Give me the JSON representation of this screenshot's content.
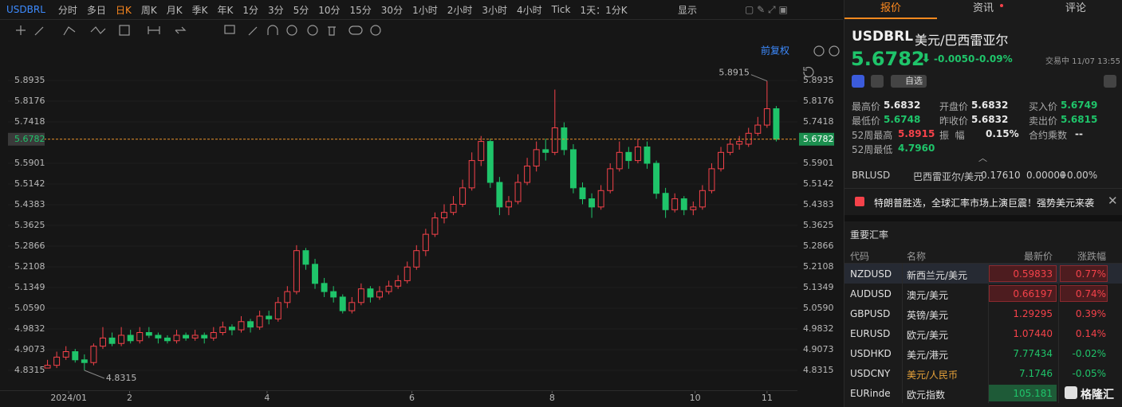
{
  "toolbar": {
    "symbol": "USDBRL",
    "periods": [
      "分时",
      "多日",
      "日K",
      "周K",
      "月K",
      "季K",
      "年K",
      "1分",
      "3分",
      "5分",
      "10分",
      "15分",
      "30分",
      "1小时",
      "2小时",
      "3小时",
      "4小时",
      "Tick"
    ],
    "active_period": "日K",
    "interval": "1天：1分K",
    "display": "显示"
  },
  "chart_header": {
    "adjust": "前复权"
  },
  "chart_data": {
    "type": "candlestick",
    "up_color": "#f5424a",
    "down_color": "#1fc46a",
    "grid": true,
    "ylim": [
      4.7585,
      5.9694
    ],
    "yticks": [
      5.8935,
      5.8176,
      5.7418,
      5.5901,
      5.5142,
      5.4383,
      5.3625,
      5.2866,
      5.2108,
      5.1349,
      {
        "value": 5.059,
        "label": "5.0590"
      },
      4.9832,
      4.9073,
      4.8315
    ],
    "last_price": 5.6782,
    "high_label": 5.8915,
    "low_label": 4.8315,
    "xlim": [
      -1,
      80
    ],
    "xticks": [
      {
        "value": 2.3,
        "label": "2024/01"
      },
      {
        "value": 8.9,
        "label": "2"
      },
      {
        "value": 23.8,
        "label": "4"
      },
      {
        "value": 39.5,
        "label": "6"
      },
      {
        "value": 54.7,
        "label": "8"
      },
      {
        "value": 70.2,
        "label": "10"
      },
      {
        "value": 78,
        "label": "11"
      }
    ],
    "candles": [
      [
        4.84,
        4.87,
        4.84,
        4.85
      ],
      [
        4.85,
        4.9,
        4.84,
        4.88
      ],
      [
        4.88,
        4.92,
        4.87,
        4.9
      ],
      [
        4.9,
        4.91,
        4.86,
        4.87
      ],
      [
        4.87,
        4.89,
        4.8315,
        4.86
      ],
      [
        4.86,
        4.93,
        4.85,
        4.92
      ],
      [
        4.92,
        4.99,
        4.91,
        4.95
      ],
      [
        4.95,
        4.97,
        4.92,
        4.93
      ],
      [
        4.93,
        4.99,
        4.92,
        4.96
      ],
      [
        4.96,
        4.98,
        4.93,
        4.94
      ],
      [
        4.94,
        4.99,
        4.93,
        4.97
      ],
      [
        4.97,
        4.99,
        4.95,
        4.96
      ],
      [
        4.96,
        4.97,
        4.93,
        4.95
      ],
      [
        4.95,
        4.96,
        4.93,
        4.94
      ],
      [
        4.94,
        4.98,
        4.93,
        4.96
      ],
      [
        4.96,
        4.97,
        4.94,
        4.95
      ],
      [
        4.95,
        4.98,
        4.94,
        4.96
      ],
      [
        4.96,
        4.97,
        4.93,
        4.95
      ],
      [
        4.95,
        4.99,
        4.94,
        4.97
      ],
      [
        4.97,
        5.01,
        4.96,
        4.99
      ],
      [
        4.99,
        5.0,
        4.96,
        4.98
      ],
      [
        4.98,
        5.03,
        4.97,
        5.01
      ],
      [
        5.01,
        5.02,
        4.97,
        4.99
      ],
      [
        4.99,
        5.05,
        4.98,
        5.03
      ],
      [
        5.03,
        5.05,
        5.0,
        5.02
      ],
      [
        5.02,
        5.1,
        5.01,
        5.08
      ],
      [
        5.08,
        5.14,
        5.06,
        5.12
      ],
      [
        5.12,
        5.29,
        5.11,
        5.27
      ],
      [
        5.27,
        5.28,
        5.2,
        5.22
      ],
      [
        5.22,
        5.24,
        5.13,
        5.15
      ],
      [
        5.15,
        5.17,
        5.1,
        5.12
      ],
      [
        5.12,
        5.14,
        5.08,
        5.1
      ],
      [
        5.1,
        5.11,
        5.04,
        5.05
      ],
      [
        5.05,
        5.1,
        5.04,
        5.08
      ],
      [
        5.08,
        5.15,
        5.07,
        5.13
      ],
      [
        5.13,
        5.14,
        5.08,
        5.1
      ],
      [
        5.1,
        5.14,
        5.09,
        5.12
      ],
      [
        5.12,
        5.16,
        5.11,
        5.14
      ],
      [
        5.14,
        5.18,
        5.13,
        5.16
      ],
      [
        5.16,
        5.23,
        5.15,
        5.21
      ],
      [
        5.21,
        5.29,
        5.2,
        5.27
      ],
      [
        5.27,
        5.35,
        5.25,
        5.33
      ],
      [
        5.33,
        5.41,
        5.32,
        5.39
      ],
      [
        5.39,
        5.44,
        5.37,
        5.41
      ],
      [
        5.41,
        5.47,
        5.4,
        5.44
      ],
      [
        5.44,
        5.53,
        5.43,
        5.5
      ],
      [
        5.5,
        5.63,
        5.49,
        5.6
      ],
      [
        5.6,
        5.69,
        5.58,
        5.67
      ],
      [
        5.67,
        5.68,
        5.5,
        5.52
      ],
      [
        5.52,
        5.54,
        5.4,
        5.43
      ],
      [
        5.43,
        5.47,
        5.4,
        5.45
      ],
      [
        5.45,
        5.55,
        5.44,
        5.52
      ],
      [
        5.52,
        5.61,
        5.51,
        5.58
      ],
      [
        5.58,
        5.67,
        5.56,
        5.64
      ],
      [
        5.64,
        5.68,
        5.6,
        5.63
      ],
      [
        5.63,
        5.86,
        5.62,
        5.72
      ],
      [
        5.72,
        5.74,
        5.62,
        5.64
      ],
      [
        5.64,
        5.66,
        5.48,
        5.5
      ],
      [
        5.5,
        5.52,
        5.44,
        5.46
      ],
      [
        5.46,
        5.48,
        5.39,
        5.43
      ],
      [
        5.43,
        5.51,
        5.42,
        5.49
      ],
      [
        5.49,
        5.59,
        5.48,
        5.57
      ],
      [
        5.57,
        5.67,
        5.56,
        5.63
      ],
      [
        5.63,
        5.65,
        5.57,
        5.6
      ],
      [
        5.6,
        5.68,
        5.59,
        5.65
      ],
      [
        5.65,
        5.67,
        5.57,
        5.59
      ],
      [
        5.59,
        5.6,
        5.46,
        5.48
      ],
      [
        5.48,
        5.5,
        5.39,
        5.42
      ],
      [
        5.42,
        5.48,
        5.41,
        5.46
      ],
      [
        5.46,
        5.47,
        5.4,
        5.42
      ],
      [
        5.42,
        5.45,
        5.4,
        5.43
      ],
      [
        5.43,
        5.51,
        5.42,
        5.49
      ],
      [
        5.49,
        5.59,
        5.48,
        5.57
      ],
      [
        5.57,
        5.65,
        5.56,
        5.63
      ],
      [
        5.63,
        5.68,
        5.62,
        5.66
      ],
      [
        5.66,
        5.69,
        5.64,
        5.67
      ],
      [
        5.66,
        5.72,
        5.65,
        5.7
      ],
      [
        5.7,
        5.76,
        5.69,
        5.73
      ],
      [
        5.73,
        5.8915,
        5.72,
        5.79
      ],
      [
        5.79,
        5.8,
        5.67,
        5.6782
      ]
    ]
  },
  "panel": {
    "tabs": [
      "报价",
      "资讯",
      "评论"
    ],
    "active_tab": "报价",
    "symbol": "USDBRL",
    "name": "美元/巴西雷亚尔",
    "price": "5.6782",
    "change": "-0.0050",
    "change_pct": "-0.09%",
    "status": "交易中 11/07 13:55",
    "watch": "自选",
    "stats": [
      [
        {
          "label": "最高价",
          "value": "5.6832",
          "tone": "flat"
        },
        {
          "label": "开盘价",
          "value": "5.6832",
          "tone": "flat"
        },
        {
          "label": "买入价",
          "value": "5.6749",
          "tone": "down"
        }
      ],
      [
        {
          "label": "最低价",
          "value": "5.6748",
          "tone": "down"
        },
        {
          "label": "昨收价",
          "value": "5.6832",
          "tone": "flat"
        },
        {
          "label": "卖出价",
          "value": "5.6815",
          "tone": "down"
        }
      ],
      [
        {
          "label": "52周最高",
          "value": "5.8915",
          "tone": "up"
        },
        {
          "label": "振  幅",
          "value": "0.15%",
          "tone": "flat"
        },
        {
          "label": "合约乘数",
          "value": "--",
          "tone": "flat"
        }
      ],
      [
        {
          "label": "52周最低",
          "value": "4.7960",
          "tone": "down"
        }
      ]
    ],
    "related": [
      "BRLUSD",
      "巴西雷亚尔/美元",
      "0.17610",
      "0.00000",
      "+0.00%"
    ],
    "news": "特朗普胜选，全球汇率市场上演巨震！强势美元来袭",
    "rates": {
      "title": "重要汇率",
      "columns": [
        "代码",
        "名称",
        "最新价",
        "涨跌幅"
      ],
      "rows": [
        {
          "cells": [
            "NZDUSD",
            "新西兰元/美元",
            "0.59833",
            "0.77%"
          ],
          "tone": "up",
          "highlight": true,
          "selected": true
        },
        {
          "cells": [
            "AUDUSD",
            "澳元/美元",
            "0.66197",
            "0.74%"
          ],
          "tone": "up",
          "highlight": true,
          "selected": false
        },
        {
          "cells": [
            "GBPUSD",
            "英镑/美元",
            "1.29295",
            "0.39%"
          ],
          "tone": "up",
          "highlight": false,
          "selected": false
        },
        {
          "cells": [
            "EURUSD",
            "欧元/美元",
            "1.07440",
            "0.14%"
          ],
          "tone": "up",
          "highlight": false,
          "selected": false
        },
        {
          "cells": [
            "USDHKD",
            "美元/港元",
            "7.77434",
            "-0.02%"
          ],
          "tone": "down",
          "highlight": false,
          "selected": false
        },
        {
          "cells": [
            "USDCNY",
            "美元/人民币",
            "7.1746",
            "-0.05%"
          ],
          "tone": "down",
          "highlight": false,
          "selected": false
        },
        {
          "cells": [
            "EURinde",
            "欧元指数",
            "105.181"
          ],
          "tone": "down",
          "highlight": true,
          "selected": false
        }
      ]
    }
  },
  "watermark": "格隆汇"
}
